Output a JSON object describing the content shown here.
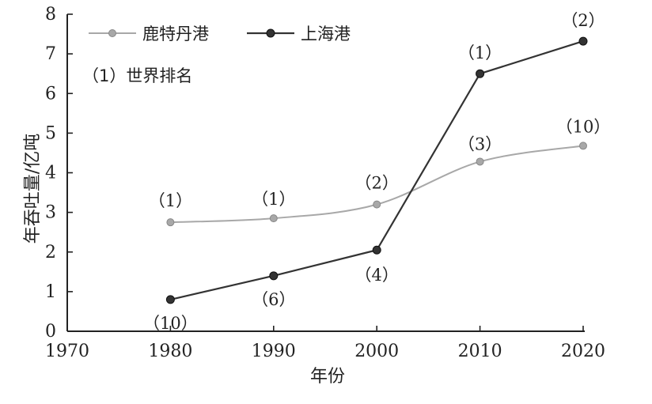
{
  "chart_data": {
    "type": "line",
    "xlabel": "年份",
    "ylabel": "年吞吐量/亿吨",
    "x_ticks": [
      "1970",
      "1980",
      "1990",
      "2000",
      "2010",
      "2020"
    ],
    "y_ticks": [
      "0",
      "1",
      "2",
      "3",
      "4",
      "5",
      "6",
      "7",
      "8"
    ],
    "xlim": [
      1970,
      2020
    ],
    "ylim": [
      0,
      8
    ],
    "legend_position": "top-left",
    "note": "（1）世界排名",
    "series": [
      {
        "name": "鹿特丹港",
        "color": "#a8a8a8",
        "x": [
          1980,
          1990,
          2000,
          2010,
          2020
        ],
        "y": [
          2.75,
          2.85,
          3.2,
          4.28,
          4.68
        ],
        "rank_labels": [
          "（1）",
          "（1）",
          "（2）",
          "（3）",
          "（10）"
        ]
      },
      {
        "name": "上海港",
        "color": "#333333",
        "x": [
          1980,
          1990,
          2000,
          2010,
          2020
        ],
        "y": [
          0.8,
          1.4,
          2.05,
          6.5,
          7.32
        ],
        "rank_labels": [
          "（10）",
          "（6）",
          "（4）",
          "（1）",
          "（2）"
        ]
      }
    ]
  }
}
